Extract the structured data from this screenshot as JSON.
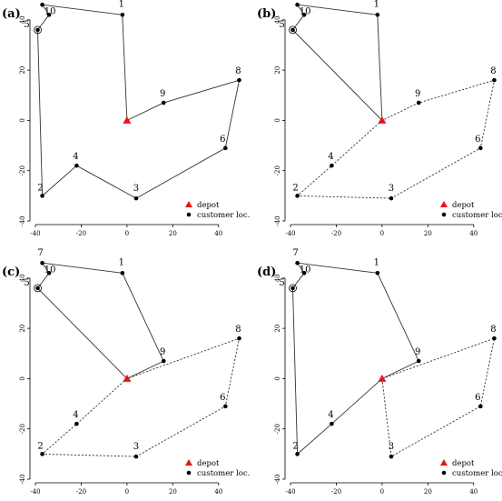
{
  "figure": {
    "legend": {
      "depot_label": "depot",
      "customer_label": "customer loc."
    },
    "colors": {
      "depot": "#e8141a",
      "customer": "#000000",
      "route": "#333333"
    }
  },
  "chart_data": [
    {
      "type": "scatter",
      "panel": "(a)",
      "title": "",
      "xlabel": "",
      "ylabel": "",
      "xlim": [
        -40,
        50
      ],
      "ylim": [
        -40,
        45
      ],
      "xticks": [
        -40,
        -20,
        0,
        20,
        40
      ],
      "yticks": [
        -40,
        -20,
        0,
        20,
        40
      ],
      "depot": {
        "x": 0,
        "y": 0
      },
      "customers": [
        {
          "id": "1",
          "x": -2,
          "y": 42
        },
        {
          "id": "2",
          "x": -37,
          "y": -30
        },
        {
          "id": "3",
          "x": 4,
          "y": -31
        },
        {
          "id": "4",
          "x": -22,
          "y": -18
        },
        {
          "id": "5",
          "x": -39,
          "y": 36
        },
        {
          "id": "6",
          "x": 43,
          "y": -11
        },
        {
          "id": "7",
          "x": -37,
          "y": 46
        },
        {
          "id": "8",
          "x": 49,
          "y": 16
        },
        {
          "id": "9",
          "x": 16,
          "y": 7
        },
        {
          "id": "10",
          "x": -34,
          "y": 42
        }
      ],
      "routes": [
        {
          "style": "solid",
          "path": [
            "0",
            "1",
            "7",
            "10",
            "5",
            "2",
            "4",
            "3",
            "6",
            "8",
            "9",
            "0"
          ]
        }
      ]
    },
    {
      "type": "scatter",
      "panel": "(b)",
      "title": "",
      "xlabel": "",
      "ylabel": "",
      "xlim": [
        -40,
        50
      ],
      "ylim": [
        -40,
        45
      ],
      "xticks": [
        -40,
        -20,
        0,
        20,
        40
      ],
      "yticks": [
        -40,
        -20,
        0,
        20,
        40
      ],
      "depot": {
        "x": 0,
        "y": 0
      },
      "customers": [
        {
          "id": "1",
          "x": -2,
          "y": 42
        },
        {
          "id": "2",
          "x": -37,
          "y": -30
        },
        {
          "id": "3",
          "x": 4,
          "y": -31
        },
        {
          "id": "4",
          "x": -22,
          "y": -18
        },
        {
          "id": "5",
          "x": -39,
          "y": 36
        },
        {
          "id": "6",
          "x": 43,
          "y": -11
        },
        {
          "id": "7",
          "x": -37,
          "y": 46
        },
        {
          "id": "8",
          "x": 49,
          "y": 16
        },
        {
          "id": "9",
          "x": 16,
          "y": 7
        },
        {
          "id": "10",
          "x": -34,
          "y": 42
        }
      ],
      "routes": [
        {
          "style": "solid",
          "path": [
            "0",
            "1",
            "7",
            "10",
            "5",
            "0"
          ]
        },
        {
          "style": "dashed",
          "path": [
            "0",
            "4",
            "2",
            "3",
            "6",
            "8",
            "9",
            "0"
          ]
        }
      ]
    },
    {
      "type": "scatter",
      "panel": "(c)",
      "title": "",
      "xlabel": "",
      "ylabel": "",
      "xlim": [
        -40,
        50
      ],
      "ylim": [
        -40,
        45
      ],
      "xticks": [
        -40,
        -20,
        0,
        20,
        40
      ],
      "yticks": [
        -40,
        -20,
        0,
        20,
        40
      ],
      "depot": {
        "x": 0,
        "y": 0
      },
      "customers": [
        {
          "id": "1",
          "x": -2,
          "y": 42
        },
        {
          "id": "2",
          "x": -37,
          "y": -30
        },
        {
          "id": "3",
          "x": 4,
          "y": -31
        },
        {
          "id": "4",
          "x": -22,
          "y": -18
        },
        {
          "id": "5",
          "x": -39,
          "y": 36
        },
        {
          "id": "6",
          "x": 43,
          "y": -11
        },
        {
          "id": "7",
          "x": -37,
          "y": 46
        },
        {
          "id": "8",
          "x": 49,
          "y": 16
        },
        {
          "id": "9",
          "x": 16,
          "y": 7
        },
        {
          "id": "10",
          "x": -34,
          "y": 42
        }
      ],
      "routes": [
        {
          "style": "solid",
          "path": [
            "0",
            "5",
            "10",
            "7",
            "1",
            "9",
            "0"
          ]
        },
        {
          "style": "dashed",
          "path": [
            "0",
            "4",
            "2",
            "3",
            "6",
            "8",
            "0"
          ]
        }
      ]
    },
    {
      "type": "scatter",
      "panel": "(d)",
      "title": "",
      "xlabel": "",
      "ylabel": "",
      "xlim": [
        -40,
        50
      ],
      "ylim": [
        -40,
        45
      ],
      "xticks": [
        -40,
        -20,
        0,
        20,
        40
      ],
      "yticks": [
        -40,
        -20,
        0,
        20,
        40
      ],
      "depot": {
        "x": 0,
        "y": 0
      },
      "customers": [
        {
          "id": "1",
          "x": -2,
          "y": 42
        },
        {
          "id": "2",
          "x": -37,
          "y": -30
        },
        {
          "id": "3",
          "x": 4,
          "y": -31
        },
        {
          "id": "4",
          "x": -22,
          "y": -18
        },
        {
          "id": "5",
          "x": -39,
          "y": 36
        },
        {
          "id": "6",
          "x": 43,
          "y": -11
        },
        {
          "id": "7",
          "x": -37,
          "y": 46
        },
        {
          "id": "8",
          "x": 49,
          "y": 16
        },
        {
          "id": "9",
          "x": 16,
          "y": 7
        },
        {
          "id": "10",
          "x": -34,
          "y": 42
        }
      ],
      "routes": [
        {
          "style": "solid",
          "path": [
            "0",
            "4",
            "2",
            "5",
            "10",
            "7",
            "1",
            "9",
            "0"
          ]
        },
        {
          "style": "dashed",
          "path": [
            "0",
            "3",
            "6",
            "8",
            "0"
          ]
        }
      ]
    }
  ]
}
